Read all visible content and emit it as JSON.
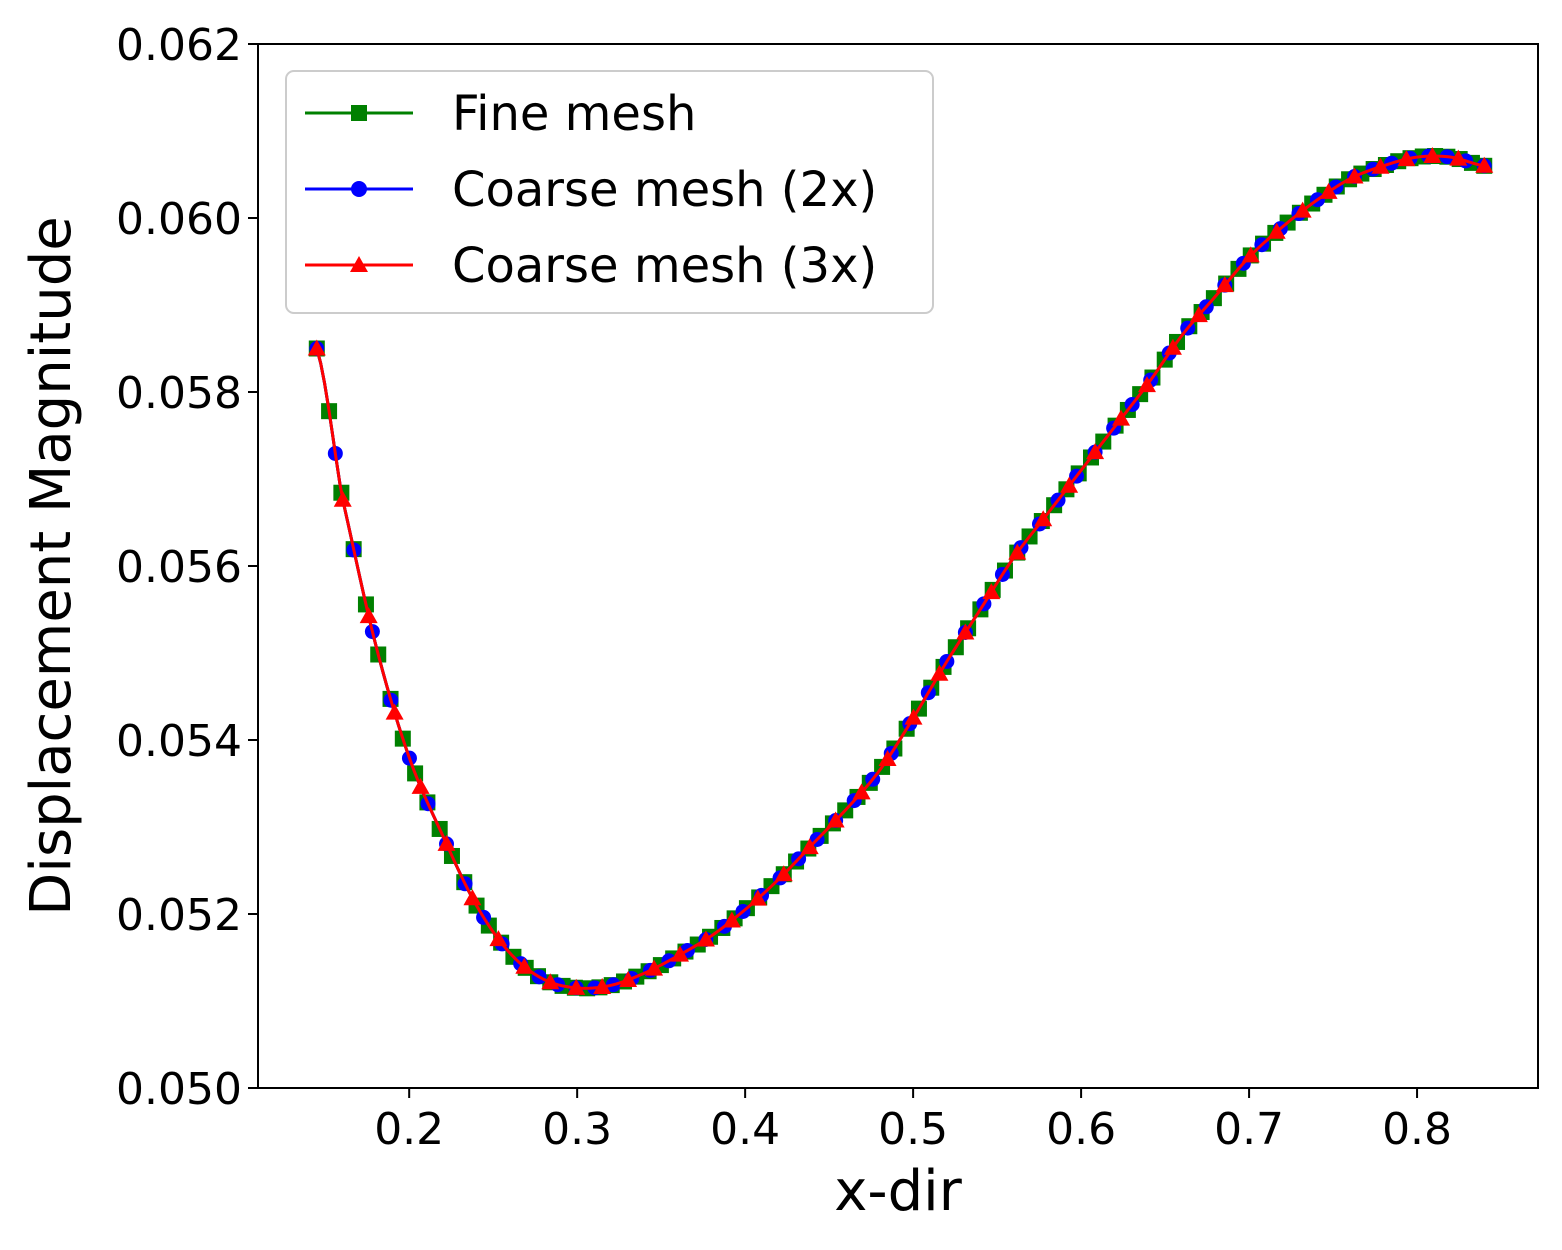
{
  "chart_data": {
    "type": "line",
    "title": "",
    "xlabel": "x-dir",
    "ylabel": "Displacement Magnitude",
    "xlim": [
      0.11,
      0.872
    ],
    "ylim": [
      0.05,
      0.062
    ],
    "xticks": [
      0.2,
      0.3,
      0.4,
      0.5,
      0.6,
      0.7,
      0.8
    ],
    "xtick_labels": [
      "0.2",
      "0.3",
      "0.4",
      "0.5",
      "0.6",
      "0.7",
      "0.8"
    ],
    "yticks": [
      0.05,
      0.052,
      0.054,
      0.056,
      0.058,
      0.06,
      0.062
    ],
    "ytick_labels": [
      "0.050",
      "0.052",
      "0.054",
      "0.056",
      "0.058",
      "0.060",
      "0.062"
    ],
    "grid": false,
    "legend": "upper-left",
    "curve": {
      "x": [
        0.145,
        0.16,
        0.18,
        0.2,
        0.22,
        0.24,
        0.26,
        0.28,
        0.3,
        0.32,
        0.34,
        0.36,
        0.38,
        0.4,
        0.42,
        0.44,
        0.46,
        0.48,
        0.5,
        0.52,
        0.54,
        0.56,
        0.58,
        0.6,
        0.62,
        0.64,
        0.66,
        0.68,
        0.7,
        0.72,
        0.74,
        0.76,
        0.78,
        0.8,
        0.82,
        0.84
      ],
      "y": [
        0.0585,
        0.0568,
        0.0551,
        0.0538,
        0.0529,
        0.0521,
        0.05155,
        0.05125,
        0.05115,
        0.05118,
        0.05132,
        0.05152,
        0.05175,
        0.05205,
        0.0524,
        0.0528,
        0.0532,
        0.05365,
        0.05425,
        0.0549,
        0.0555,
        0.0561,
        0.0566,
        0.0571,
        0.0576,
        0.0581,
        0.05865,
        0.0591,
        0.05955,
        0.0599,
        0.0602,
        0.06045,
        0.0606,
        0.0607,
        0.0607,
        0.0606
      ]
    },
    "series": [
      {
        "name": "Fine mesh",
        "color": "#008000",
        "marker": "square",
        "marker_x_start": 0.145,
        "marker_x_end": 0.84,
        "marker_count": 96
      },
      {
        "name": "Coarse mesh (2x)",
        "color": "#0000ff",
        "marker": "circle",
        "marker_x_start": 0.145,
        "marker_x_end": 0.84,
        "marker_count": 64
      },
      {
        "name": "Coarse mesh (3x)",
        "color": "#ff0000",
        "marker": "triangle",
        "marker_x_start": 0.145,
        "marker_x_end": 0.84,
        "marker_count": 46
      }
    ]
  }
}
